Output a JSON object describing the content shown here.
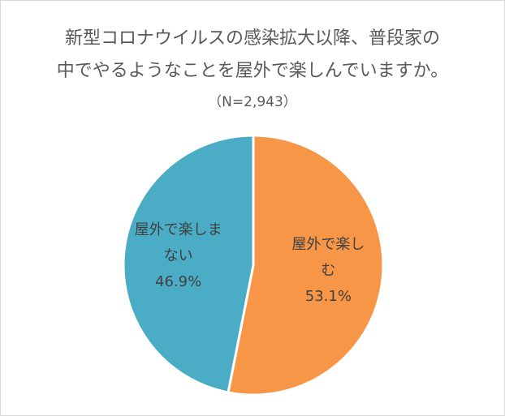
{
  "chart_data": {
    "type": "pie",
    "title": [
      "新型コロナウイルスの感染拡大以降、普段家の",
      "中でやるようなことを屋外で楽しんでいますか。"
    ],
    "subtitle": "（N=2,943）",
    "categories": [
      "屋外で楽しむ",
      "屋外で楽しまない"
    ],
    "values": [
      53.1,
      46.9
    ],
    "value_labels": [
      "53.1%",
      "46.9%"
    ],
    "colors": [
      "#F79646",
      "#4BACC6"
    ]
  }
}
